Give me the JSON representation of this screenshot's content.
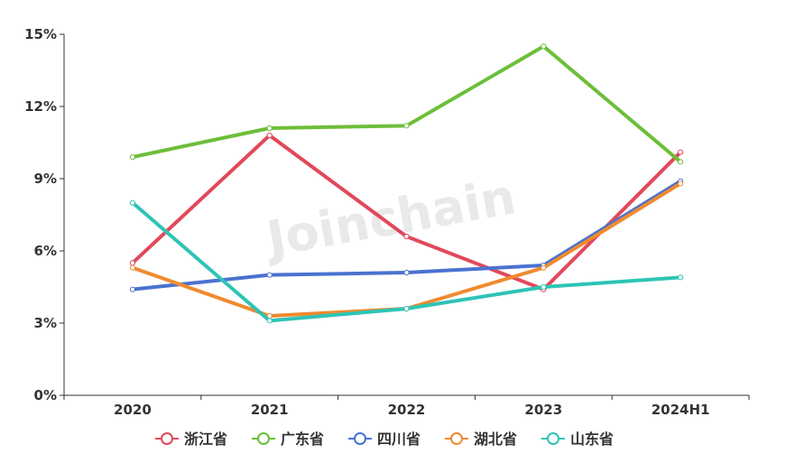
{
  "watermark": "Joinchain",
  "colors": {
    "zhejiang": "#e2485a",
    "guangdong": "#6dbe3a",
    "sichuan": "#4a72cf",
    "hubei": "#f08a30",
    "shandong": "#2ec4b6",
    "axis": "#333333"
  },
  "chart_data": {
    "type": "line",
    "categories": [
      "2020",
      "2021",
      "2022",
      "2023",
      "2024H1"
    ],
    "y_ticks": [
      0,
      3,
      6,
      9,
      12,
      15
    ],
    "y_tick_labels": [
      "0%",
      "3%",
      "6%",
      "9%",
      "12%",
      "15%"
    ],
    "ylim": [
      0,
      15
    ],
    "unit": "%",
    "grid": false,
    "legend_position": "bottom-center",
    "series": [
      {
        "name": "浙江省",
        "color": "#e2485a",
        "values": [
          5.5,
          10.8,
          6.6,
          4.4,
          10.1
        ]
      },
      {
        "name": "广东省",
        "color": "#6dbe3a",
        "values": [
          9.9,
          11.1,
          11.2,
          14.5,
          9.7
        ]
      },
      {
        "name": "四川省",
        "color": "#4a72cf",
        "values": [
          4.4,
          5.0,
          5.1,
          5.4,
          8.9
        ]
      },
      {
        "name": "湖北省",
        "color": "#f08a30",
        "values": [
          5.3,
          3.3,
          3.6,
          5.3,
          8.8
        ]
      },
      {
        "name": "山东省",
        "color": "#2ec4b6",
        "values": [
          8.0,
          3.1,
          3.6,
          4.5,
          4.9
        ]
      }
    ]
  }
}
